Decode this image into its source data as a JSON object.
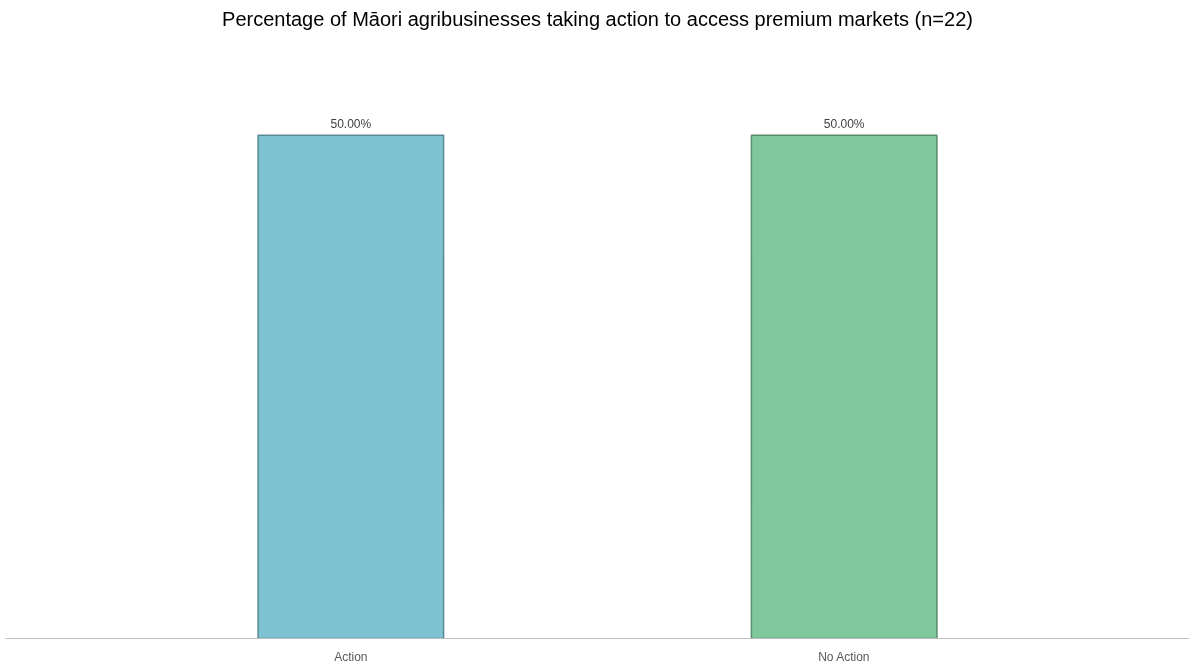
{
  "chart_data": {
    "type": "bar",
    "title": "Percentage of Māori agribusinesses taking action to access premium markets (n=22)",
    "categories": [
      "Action",
      "No Action"
    ],
    "values": [
      50,
      50
    ],
    "colors": [
      "#7fc3d2",
      "#80c79d"
    ],
    "value_labels": [
      "50.00%",
      "50.00%"
    ],
    "grid": false,
    "tick_labels": "x"
  }
}
